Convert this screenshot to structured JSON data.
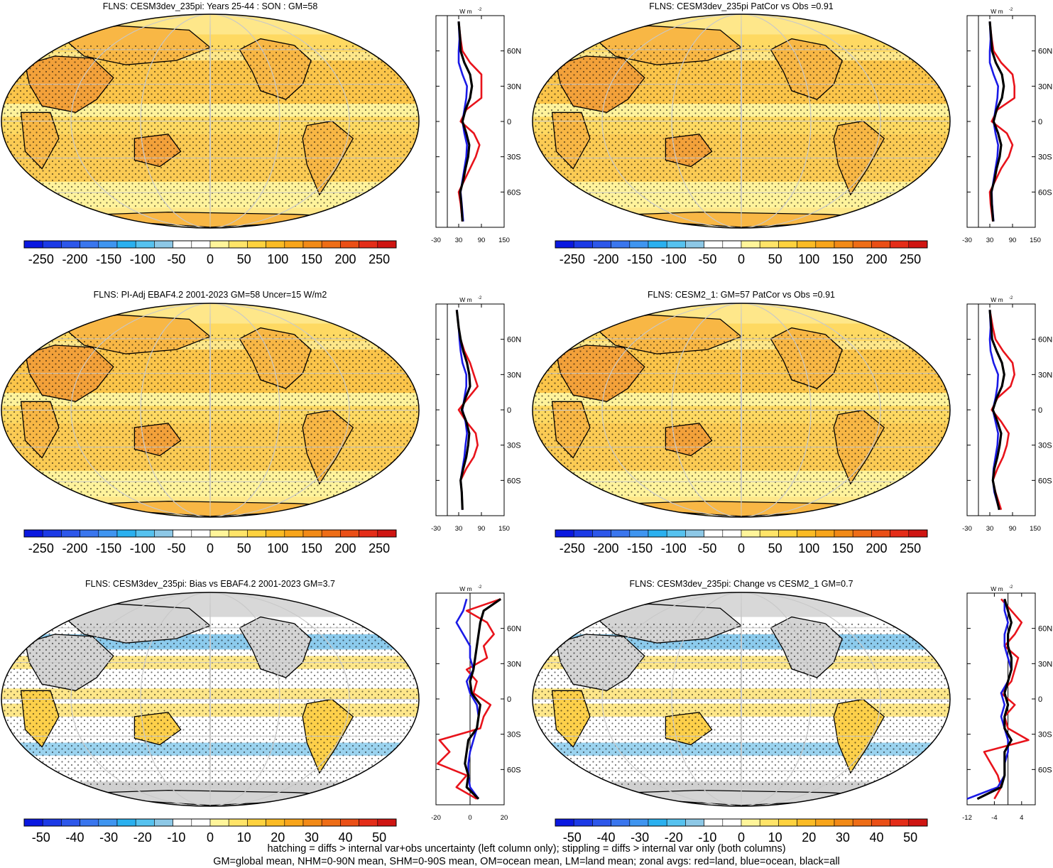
{
  "figure": {
    "footer_line1": "hatching = diffs > internal var+obs uncertainty (left column only); stippling = diffs > internal var only (both columns)",
    "footer_line2": "GM=global mean, NHM=0-90N mean, SHM=0-90S mean, OM=ocean mean, LM=land mean; zonal avgs: red=land, blue=ocean, black=all"
  },
  "colorbars": {
    "abs": {
      "ticks": [
        "-250",
        "-200",
        "-150",
        "-100",
        "-50",
        "0",
        "50",
        "100",
        "150",
        "200",
        "250"
      ],
      "colors": [
        "#0a18e0",
        "#1c3ae6",
        "#2d57ea",
        "#3a76ee",
        "#3f95f0",
        "#2ab0ef",
        "#56c2ef",
        "#8dc8e6",
        "#ffffff",
        "#ffffff",
        "#fff59a",
        "#ffe468",
        "#fed23e",
        "#fbbb24",
        "#f8a51a",
        "#f28a16",
        "#ee6d16",
        "#ea4f16",
        "#e42d18",
        "#cf1512"
      ]
    },
    "diff": {
      "ticks": [
        "-50",
        "-40",
        "-30",
        "-20",
        "-10",
        "0",
        "10",
        "20",
        "30",
        "40",
        "50"
      ],
      "colors": [
        "#0a18e0",
        "#1c3ae6",
        "#2d57ea",
        "#3a76ee",
        "#3f95f0",
        "#2ab0ef",
        "#56c2ef",
        "#8dc8e6",
        "#ffffff",
        "#ffffff",
        "#fff59a",
        "#ffe468",
        "#fed23e",
        "#fbbb24",
        "#f8a51a",
        "#f28a16",
        "#ee6d16",
        "#ea4f16",
        "#e42d18",
        "#cf1512"
      ]
    }
  },
  "panels": [
    {
      "title": "FLNS: CESM3dev_235pi: Years 25-44 : SON : GM=58",
      "kind": "abs",
      "zonal": {
        "unit": "W m",
        "unit_sup": "-2",
        "xticks": [
          "-30",
          "30",
          "90",
          "150"
        ],
        "xlim": [
          -30,
          150
        ],
        "yticks": [
          "60N",
          "30N",
          "0",
          "30S",
          "60S"
        ]
      }
    },
    {
      "title": "FLNS: CESM3dev_235pi PatCor vs Obs =0.91",
      "kind": "abs",
      "zonal": {
        "unit": "W m",
        "unit_sup": "-2",
        "xticks": [
          "-30",
          "30",
          "90",
          "150"
        ],
        "xlim": [
          -30,
          150
        ],
        "yticks": [
          "60N",
          "30N",
          "0",
          "30S",
          "60S"
        ]
      }
    },
    {
      "title": "FLNS: PI-Adj EBAF4.2 2001-2023 GM=58 Uncer=15 W/m2",
      "kind": "abs",
      "zonal": {
        "unit": "W m",
        "unit_sup": "-2",
        "xticks": [
          "-30",
          "30",
          "90",
          "150"
        ],
        "xlim": [
          -30,
          150
        ],
        "yticks": [
          "60N",
          "30N",
          "0",
          "30S",
          "60S"
        ]
      }
    },
    {
      "title": "FLNS: CESM2_1: GM=57 PatCor vs Obs =0.91",
      "kind": "abs",
      "zonal": {
        "unit": "W m",
        "unit_sup": "-2",
        "xticks": [
          "-30",
          "30",
          "90",
          "150"
        ],
        "xlim": [
          -30,
          150
        ],
        "yticks": [
          "60N",
          "30N",
          "0",
          "30S",
          "60S"
        ]
      }
    },
    {
      "title": "FLNS: CESM3dev_235pi: Bias vs EBAF4.2 2001-2023  GM=3.7",
      "kind": "diff",
      "zonal": {
        "unit": "W m",
        "unit_sup": "-2",
        "xticks": [
          "-20",
          "0",
          "20"
        ],
        "xlim": [
          -20,
          20
        ],
        "yticks": [
          "60N",
          "30N",
          "0",
          "30S",
          "60S"
        ]
      }
    },
    {
      "title": "FLNS: CESM3dev_235pi: Change vs CESM2_1 GM=0.7",
      "kind": "diff",
      "zonal": {
        "unit": "W m",
        "unit_sup": "-2",
        "xticks": [
          "-12",
          "-4",
          "4"
        ],
        "xlim": [
          -12,
          8
        ],
        "yticks": [
          "60N",
          "30N",
          "0",
          "30S",
          "60S"
        ]
      }
    }
  ],
  "chart_data": [
    {
      "type": "line",
      "title": "FLNS: CESM3dev_235pi: Years 25-44 : SON : GM=58",
      "xlim": [
        -30,
        150
      ],
      "ylim": [
        -90,
        90
      ],
      "y": [
        -85,
        -70,
        -60,
        -50,
        -40,
        -30,
        -20,
        -10,
        0,
        10,
        20,
        30,
        40,
        50,
        60,
        70,
        85
      ],
      "series": [
        {
          "name": "land",
          "color": "#e8131b",
          "values": [
            40,
            35,
            30,
            45,
            60,
            75,
            85,
            70,
            35,
            50,
            90,
            90,
            90,
            60,
            40,
            35,
            30
          ]
        },
        {
          "name": "ocean",
          "color": "#1a1ae6",
          "values": [
            42,
            38,
            35,
            40,
            45,
            50,
            52,
            45,
            40,
            45,
            50,
            52,
            40,
            30,
            30,
            32,
            30
          ]
        },
        {
          "name": "all",
          "color": "#000000",
          "values": [
            40,
            37,
            34,
            42,
            48,
            55,
            58,
            50,
            40,
            48,
            60,
            65,
            60,
            45,
            35,
            34,
            30
          ]
        }
      ]
    },
    {
      "type": "line",
      "title": "FLNS: CESM3dev_235pi PatCor vs Obs =0.91",
      "xlim": [
        -30,
        150
      ],
      "ylim": [
        -90,
        90
      ],
      "y": [
        -85,
        -70,
        -60,
        -50,
        -40,
        -30,
        -20,
        -10,
        0,
        10,
        20,
        30,
        40,
        50,
        60,
        70,
        85
      ],
      "series": [
        {
          "name": "land",
          "color": "#e8131b",
          "values": [
            38,
            32,
            30,
            45,
            60,
            80,
            90,
            75,
            35,
            50,
            95,
            95,
            90,
            60,
            40,
            35,
            30
          ]
        },
        {
          "name": "ocean",
          "color": "#1a1ae6",
          "values": [
            40,
            36,
            35,
            40,
            45,
            50,
            52,
            45,
            40,
            45,
            50,
            52,
            40,
            30,
            30,
            32,
            30
          ]
        },
        {
          "name": "all",
          "color": "#000000",
          "values": [
            39,
            35,
            34,
            42,
            48,
            56,
            60,
            52,
            40,
            48,
            62,
            67,
            62,
            46,
            36,
            34,
            30
          ]
        }
      ]
    },
    {
      "type": "line",
      "title": "FLNS: PI-Adj EBAF4.2 2001-2023 GM=58 Uncer=15 W/m2",
      "xlim": [
        -30,
        150
      ],
      "ylim": [
        -90,
        90
      ],
      "y": [
        -85,
        -70,
        -60,
        -50,
        -40,
        -30,
        -20,
        -10,
        0,
        10,
        20,
        30,
        40,
        50,
        60,
        70,
        85
      ],
      "series": [
        {
          "name": "land",
          "color": "#e8131b",
          "values": [
            40,
            38,
            35,
            50,
            70,
            80,
            75,
            50,
            30,
            55,
            80,
            70,
            60,
            45,
            35,
            30,
            25
          ]
        },
        {
          "name": "ocean",
          "color": "#1a1ae6",
          "values": [
            40,
            38,
            35,
            40,
            45,
            48,
            52,
            48,
            40,
            45,
            50,
            50,
            40,
            35,
            32,
            30,
            25
          ]
        },
        {
          "name": "all",
          "color": "#000000",
          "values": [
            40,
            38,
            35,
            42,
            50,
            55,
            58,
            50,
            38,
            48,
            60,
            58,
            52,
            42,
            35,
            30,
            25
          ]
        }
      ]
    },
    {
      "type": "line",
      "title": "FLNS: CESM2_1: GM=57 PatCor vs Obs =0.91",
      "xlim": [
        -30,
        150
      ],
      "ylim": [
        -90,
        90
      ],
      "y": [
        -85,
        -70,
        -60,
        -50,
        -40,
        -30,
        -20,
        -10,
        0,
        10,
        20,
        30,
        40,
        50,
        60,
        70,
        85
      ],
      "series": [
        {
          "name": "land",
          "color": "#e8131b",
          "values": [
            60,
            45,
            38,
            50,
            65,
            75,
            80,
            60,
            35,
            50,
            85,
            95,
            90,
            65,
            45,
            38,
            30
          ]
        },
        {
          "name": "ocean",
          "color": "#1a1ae6",
          "values": [
            55,
            42,
            38,
            40,
            45,
            50,
            52,
            45,
            38,
            45,
            50,
            52,
            40,
            32,
            30,
            32,
            30
          ]
        },
        {
          "name": "all",
          "color": "#000000",
          "values": [
            55,
            44,
            38,
            42,
            50,
            56,
            60,
            50,
            38,
            48,
            62,
            68,
            62,
            48,
            36,
            34,
            30
          ]
        }
      ]
    },
    {
      "type": "line",
      "title": "FLNS: CESM3dev_235pi: Bias vs EBAF4.2 2001-2023  GM=3.7",
      "xlim": [
        -20,
        20
      ],
      "ylim": [
        -90,
        90
      ],
      "y": [
        -85,
        -75,
        -65,
        -55,
        -45,
        -35,
        -25,
        -15,
        -5,
        5,
        15,
        25,
        35,
        45,
        55,
        65,
        75,
        85
      ],
      "series": [
        {
          "name": "land",
          "color": "#e8131b",
          "values": [
            4,
            -8,
            -2,
            -19,
            -12,
            -18,
            6,
            8,
            12,
            2,
            4,
            -2,
            10,
            8,
            14,
            10,
            -2,
            18
          ]
        },
        {
          "name": "ocean",
          "color": "#1a1ae6",
          "values": [
            5,
            0,
            -1,
            -1,
            0,
            2,
            4,
            5,
            4,
            0,
            -2,
            2,
            0,
            0,
            -4,
            -8,
            -4,
            -2
          ]
        },
        {
          "name": "all",
          "color": "#000000",
          "values": [
            5,
            -2,
            -1,
            -3,
            -2,
            -1,
            4,
            5,
            6,
            1,
            0,
            2,
            3,
            4,
            5,
            6,
            8,
            18
          ]
        }
      ]
    },
    {
      "type": "line",
      "title": "FLNS: CESM3dev_235pi: Change vs CESM2_1 GM=0.7",
      "xlim": [
        -12,
        8
      ],
      "ylim": [
        -90,
        90
      ],
      "y": [
        -85,
        -75,
        -65,
        -55,
        -45,
        -35,
        -25,
        -15,
        -5,
        5,
        15,
        25,
        35,
        45,
        55,
        65,
        75,
        85
      ],
      "series": [
        {
          "name": "land",
          "color": "#e8131b",
          "values": [
            -4,
            -2,
            -3,
            -5,
            -7,
            6,
            0,
            -1,
            2,
            -2,
            1,
            2,
            3,
            -1,
            2,
            4,
            1,
            -2
          ]
        },
        {
          "name": "ocean",
          "color": "#1a1ae6",
          "values": [
            -14,
            -3,
            -1,
            -1,
            0,
            0,
            -1,
            -2,
            -1,
            -2,
            0,
            1,
            0,
            -1,
            -1,
            0,
            -1,
            -1
          ]
        },
        {
          "name": "all",
          "color": "#000000",
          "values": [
            -9,
            -2,
            -1,
            -1,
            -1,
            1,
            -1,
            -1,
            0,
            -1,
            0,
            1,
            1,
            0,
            0,
            1,
            0,
            -1
          ]
        }
      ]
    }
  ]
}
